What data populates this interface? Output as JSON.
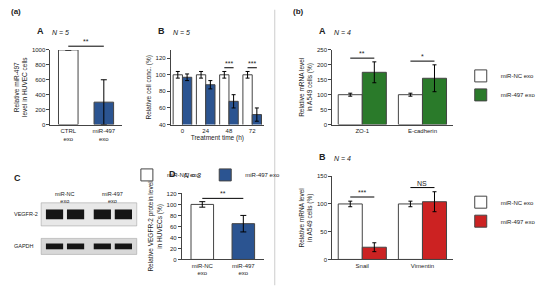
{
  "chart_data": [
    {
      "type": "bar",
      "title": "A",
      "panel_label": "(a)",
      "n": "N = 5",
      "categories": [
        "CTRL\nexo",
        "miR-497\nexo"
      ],
      "values": [
        1000,
        300
      ],
      "errors": [
        0,
        300
      ],
      "colors": [
        "white",
        "#2b5491"
      ],
      "ylabel": "Relative miR-497\nlevel in HUVEC cells",
      "ylim": [
        0,
        1000
      ],
      "yticks": [
        0,
        200,
        400,
        600,
        800,
        1000
      ],
      "grid": false,
      "significance": [
        {
          "between": [
            "CTRL\nexo",
            "miR-497\nexo"
          ],
          "label": "**"
        }
      ]
    },
    {
      "type": "bar",
      "title": "B",
      "n": "N = 5",
      "categories": [
        "0",
        "24",
        "48",
        "72"
      ],
      "series": [
        {
          "name": "miR-NC exo",
          "color": "white",
          "values": [
            100,
            100,
            100,
            100
          ],
          "errors": [
            4,
            4,
            4,
            4
          ]
        },
        {
          "name": "miR-497 exo",
          "color": "#2b5491",
          "values": [
            97,
            88,
            68,
            52
          ],
          "errors": [
            4,
            5,
            8,
            8
          ]
        }
      ],
      "xlabel": "Treatment time (h)",
      "ylabel": "Relative cell conc. (%)",
      "ylim": [
        40,
        130
      ],
      "yticks": [
        40,
        60,
        80,
        100,
        120
      ],
      "grid": false,
      "legend": "bottom",
      "significance": [
        {
          "category": "48",
          "label": "***"
        },
        {
          "category": "72",
          "label": "***"
        }
      ]
    },
    {
      "type": "blot",
      "title": "C",
      "columns": [
        "miR-NC\nexo",
        "miR-497\nexo"
      ],
      "rows": [
        "VEGFR-2",
        "GAPDH"
      ]
    },
    {
      "type": "bar",
      "title": "D",
      "n": "N = 3",
      "categories": [
        "miR-NC\nexo",
        "miR-497\nexo"
      ],
      "values": [
        100,
        65
      ],
      "errors": [
        5,
        15
      ],
      "colors": [
        "white",
        "#2b5491"
      ],
      "ylabel": "Relative VEGFR-2 protein level\nin HUVECs (%)",
      "ylim": [
        0,
        120
      ],
      "yticks": [
        0,
        20,
        40,
        60,
        80,
        100,
        120
      ],
      "grid": false,
      "significance": [
        {
          "between": [
            "miR-NC\nexo",
            "miR-497\nexo"
          ],
          "label": "**"
        }
      ]
    },
    {
      "type": "bar",
      "title": "A",
      "panel_label": "(b)",
      "n": "N = 4",
      "categories": [
        "ZO-1",
        "E-cadherin"
      ],
      "series": [
        {
          "name": "miR-NC exo",
          "color": "white",
          "values": [
            100,
            100
          ],
          "errors": [
            5,
            5
          ]
        },
        {
          "name": "miR-497 exo",
          "color": "#2a7a2a",
          "values": [
            175,
            155
          ],
          "errors": [
            35,
            45
          ]
        }
      ],
      "ylabel": "Relative mRNA level\nin A549 cells (%)",
      "ylim": [
        0,
        250
      ],
      "yticks": [
        0,
        50,
        100,
        150,
        200,
        250
      ],
      "grid": false,
      "legend": "right",
      "significance": [
        {
          "category": "ZO-1",
          "label": "**"
        },
        {
          "category": "E-cadherin",
          "label": "*"
        }
      ]
    },
    {
      "type": "bar",
      "title": "B",
      "n": "N = 4",
      "categories": [
        "Snail",
        "Vimentin"
      ],
      "series": [
        {
          "name": "miR-NC exo",
          "color": "white",
          "values": [
            100,
            100
          ],
          "errors": [
            5,
            5
          ]
        },
        {
          "name": "miR-497 exo",
          "color": "#cc2222",
          "values": [
            22,
            104
          ],
          "errors": [
            8,
            18
          ]
        }
      ],
      "ylabel": "Relative mRNA level\nin A549 cells (%)",
      "ylim": [
        0,
        150
      ],
      "yticks": [
        0,
        50,
        100,
        150
      ],
      "grid": false,
      "legend": "right",
      "significance": [
        {
          "category": "Snail",
          "label": "***"
        },
        {
          "category": "Vimentin",
          "label": "NS"
        }
      ]
    }
  ]
}
